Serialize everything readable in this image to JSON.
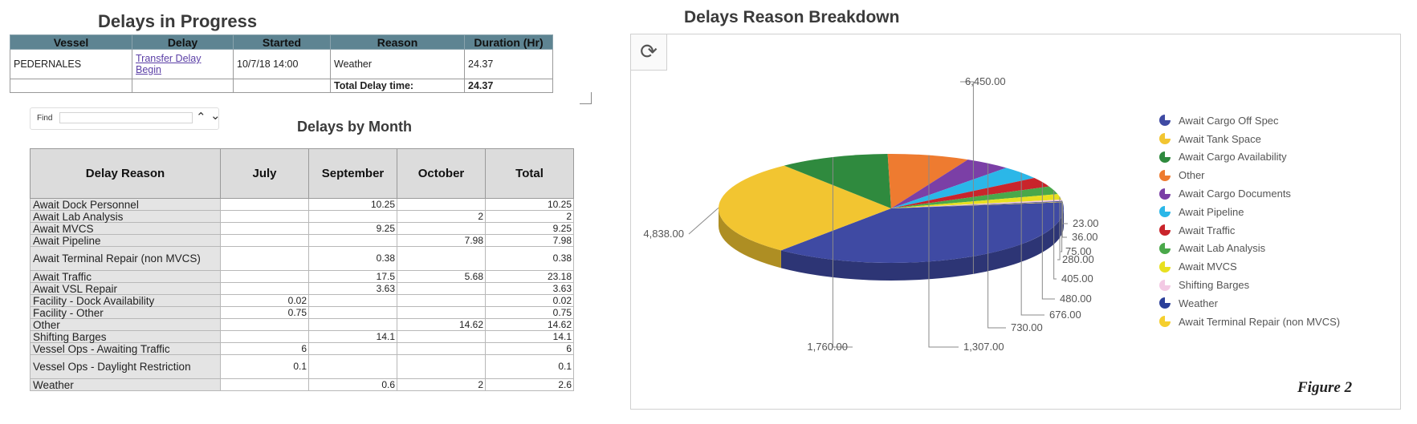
{
  "delays_in_progress": {
    "title": "Delays in Progress",
    "headers": [
      "Vessel",
      "Delay",
      "Started",
      "Reason",
      "Duration (Hr)"
    ],
    "row": {
      "vessel": "PEDERNALES",
      "delay_link_line1": "Transfer Delay",
      "delay_link_line2": "Begin",
      "started": "10/7/18 14:00",
      "reason": "Weather",
      "duration": "24.37"
    },
    "total_label": "Total Delay time:",
    "total_value": "24.37"
  },
  "find": {
    "label": "Find",
    "value": "",
    "up_icon": "chevron-up-icon",
    "down_icon": "chevron-down-icon"
  },
  "delays_by_month": {
    "title": "Delays by Month",
    "headers": [
      "Delay Reason",
      "July",
      "September",
      "October",
      "Total"
    ],
    "rows": [
      [
        "Await Dock Personnel",
        "",
        "10.25",
        "",
        "10.25"
      ],
      [
        "Await Lab Analysis",
        "",
        "",
        "2",
        "2"
      ],
      [
        "Await MVCS",
        "",
        "9.25",
        "",
        "9.25"
      ],
      [
        "Await Pipeline",
        "",
        "",
        "7.98",
        "7.98"
      ],
      [
        "Await Terminal Repair (non MVCS)",
        "",
        "0.38",
        "",
        "0.38"
      ],
      [
        "Await Traffic",
        "",
        "17.5",
        "5.68",
        "23.18"
      ],
      [
        "Await VSL Repair",
        "",
        "3.63",
        "",
        "3.63"
      ],
      [
        "Facility - Dock Availability",
        "0.02",
        "",
        "",
        "0.02"
      ],
      [
        "Facility - Other",
        "0.75",
        "",
        "",
        "0.75"
      ],
      [
        "Other",
        "",
        "",
        "14.62",
        "14.62"
      ],
      [
        "Shifting Barges",
        "",
        "14.1",
        "",
        "14.1"
      ],
      [
        "Vessel Ops - Awaiting Traffic",
        "6",
        "",
        "",
        "6"
      ],
      [
        "Vessel Ops - Daylight Restriction",
        "0.1",
        "",
        "",
        "0.1"
      ],
      [
        "Weather",
        "",
        "0.6",
        "2",
        "2.6"
      ]
    ]
  },
  "breakdown": {
    "title": "Delays Reason Breakdown",
    "refresh_icon": "refresh-icon",
    "figure_caption": "Figure 2"
  },
  "chart_data": {
    "type": "pie",
    "title": "Delays Reason Breakdown",
    "slices": [
      {
        "label": "Await Cargo Off Spec",
        "value": 6450.0,
        "display": "6,450.00",
        "color": "#3f4aa3"
      },
      {
        "label": "Await Tank Space",
        "value": 4838.0,
        "display": "4,838.00",
        "color": "#f2c531"
      },
      {
        "label": "Await Cargo Availability",
        "value": 1760.0,
        "display": "1,760.00",
        "color": "#2f8a3e"
      },
      {
        "label": "Other",
        "value": 1307.0,
        "display": "1,307.00",
        "color": "#ee7b30"
      },
      {
        "label": "Await Cargo Documents",
        "value": 730.0,
        "display": "730.00",
        "color": "#7b3fa6"
      },
      {
        "label": "Await Pipeline",
        "value": 676.0,
        "display": "676.00",
        "color": "#2bb7e8"
      },
      {
        "label": "Await Traffic",
        "value": 480.0,
        "display": "480.00",
        "color": "#c9242b"
      },
      {
        "label": "Await Lab Analysis",
        "value": 405.0,
        "display": "405.00",
        "color": "#4aa84a"
      },
      {
        "label": "Await MVCS",
        "value": 280.0,
        "display": "280.00",
        "color": "#e8e020"
      },
      {
        "label": "Shifting Barges",
        "value": 75.0,
        "display": "75.00",
        "color": "#f3c9e4"
      },
      {
        "label": "Weather",
        "value": 36.0,
        "display": "36.00",
        "color": "#2b3f99"
      },
      {
        "label": "Await Terminal Repair (non MVCS)",
        "value": 23.0,
        "display": "23.00",
        "color": "#f5cf2e"
      }
    ],
    "legend_position": "right"
  }
}
